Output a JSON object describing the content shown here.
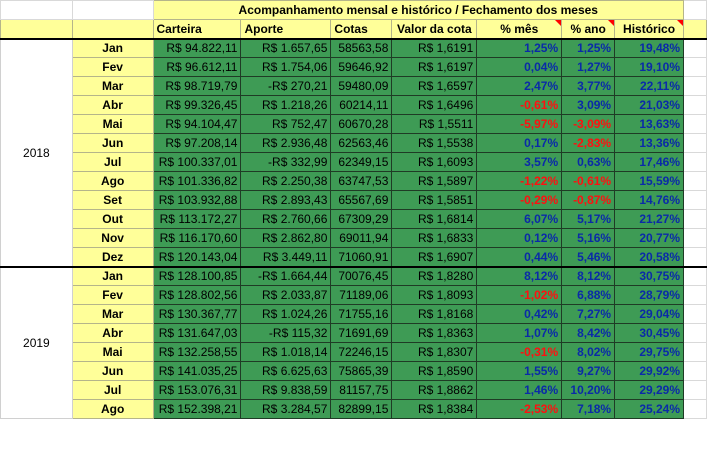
{
  "header": {
    "title": "Acompanhamento mensal e histórico / Fechamento dos meses",
    "columns": [
      "Carteira",
      "Aporte",
      "Cotas",
      "Valor da cota",
      "% mês",
      "% ano",
      "Histórico"
    ]
  },
  "years": [
    {
      "year": "2018",
      "rows": [
        {
          "month": "Jan",
          "carteira": "R$ 94.822,11",
          "aporte": "R$ 1.657,65",
          "cotas": "58563,58",
          "valor": "R$ 1,6191",
          "mes": "1,25%",
          "ano": "1,25%",
          "hist": "19,48%"
        },
        {
          "month": "Fev",
          "carteira": "R$ 96.612,11",
          "aporte": "R$ 1.754,06",
          "cotas": "59646,92",
          "valor": "R$ 1,6197",
          "mes": "0,04%",
          "ano": "1,27%",
          "hist": "19,10%"
        },
        {
          "month": "Mar",
          "carteira": "R$ 98.719,79",
          "aporte": "-R$ 270,21",
          "cotas": "59480,09",
          "valor": "R$ 1,6597",
          "mes": "2,47%",
          "ano": "3,77%",
          "hist": "22,11%"
        },
        {
          "month": "Abr",
          "carteira": "R$ 99.326,45",
          "aporte": "R$ 1.218,26",
          "cotas": "60214,11",
          "valor": "R$ 1,6496",
          "mes": "-0,61%",
          "ano": "3,09%",
          "hist": "21,03%"
        },
        {
          "month": "Mai",
          "carteira": "R$ 94.104,47",
          "aporte": "R$ 752,47",
          "cotas": "60670,28",
          "valor": "R$ 1,5511",
          "mes": "-5,97%",
          "ano": "-3,09%",
          "hist": "13,63%"
        },
        {
          "month": "Jun",
          "carteira": "R$ 97.208,14",
          "aporte": "R$ 2.936,48",
          "cotas": "62563,46",
          "valor": "R$ 1,5538",
          "mes": "0,17%",
          "ano": "-2,83%",
          "hist": "13,36%"
        },
        {
          "month": "Jul",
          "carteira": "R$ 100.337,01",
          "aporte": "-R$ 332,99",
          "cotas": "62349,15",
          "valor": "R$ 1,6093",
          "mes": "3,57%",
          "ano": "0,63%",
          "hist": "17,46%"
        },
        {
          "month": "Ago",
          "carteira": "R$ 101.336,82",
          "aporte": "R$ 2.250,38",
          "cotas": "63747,53",
          "valor": "R$ 1,5897",
          "mes": "-1,22%",
          "ano": "-0,61%",
          "hist": "15,59%"
        },
        {
          "month": "Set",
          "carteira": "R$ 103.932,88",
          "aporte": "R$ 2.893,43",
          "cotas": "65567,69",
          "valor": "R$ 1,5851",
          "mes": "-0,29%",
          "ano": "-0,87%",
          "hist": "14,76%"
        },
        {
          "month": "Out",
          "carteira": "R$ 113.172,27",
          "aporte": "R$ 2.760,66",
          "cotas": "67309,29",
          "valor": "R$ 1,6814",
          "mes": "6,07%",
          "ano": "5,17%",
          "hist": "21,27%"
        },
        {
          "month": "Nov",
          "carteira": "R$ 116.170,60",
          "aporte": "R$ 2.862,80",
          "cotas": "69011,94",
          "valor": "R$ 1,6833",
          "mes": "0,12%",
          "ano": "5,16%",
          "hist": "20,77%"
        },
        {
          "month": "Dez",
          "carteira": "R$ 120.143,04",
          "aporte": "R$ 3.449,11",
          "cotas": "71060,91",
          "valor": "R$ 1,6907",
          "mes": "0,44%",
          "ano": "5,46%",
          "hist": "20,58%"
        }
      ]
    },
    {
      "year": "2019",
      "rows": [
        {
          "month": "Jan",
          "carteira": "R$ 128.100,85",
          "aporte": "-R$ 1.664,44",
          "cotas": "70076,45",
          "valor": "R$ 1,8280",
          "mes": "8,12%",
          "ano": "8,12%",
          "hist": "30,75%"
        },
        {
          "month": "Fev",
          "carteira": "R$ 128.802,56",
          "aporte": "R$ 2.033,87",
          "cotas": "71189,06",
          "valor": "R$ 1,8093",
          "mes": "-1,02%",
          "ano": "6,88%",
          "hist": "28,79%"
        },
        {
          "month": "Mar",
          "carteira": "R$ 130.367,77",
          "aporte": "R$ 1.024,26",
          "cotas": "71755,16",
          "valor": "R$ 1,8168",
          "mes": "0,42%",
          "ano": "7,27%",
          "hist": "29,04%"
        },
        {
          "month": "Abr",
          "carteira": "R$ 131.647,03",
          "aporte": "-R$ 115,32",
          "cotas": "71691,69",
          "valor": "R$ 1,8363",
          "mes": "1,07%",
          "ano": "8,42%",
          "hist": "30,45%"
        },
        {
          "month": "Mai",
          "carteira": "R$ 132.258,55",
          "aporte": "R$ 1.018,14",
          "cotas": "72246,15",
          "valor": "R$ 1,8307",
          "mes": "-0,31%",
          "ano": "8,02%",
          "hist": "29,75%"
        },
        {
          "month": "Jun",
          "carteira": "R$ 141.035,25",
          "aporte": "R$ 6.625,63",
          "cotas": "75865,39",
          "valor": "R$ 1,8590",
          "mes": "1,55%",
          "ano": "9,27%",
          "hist": "29,92%"
        },
        {
          "month": "Jul",
          "carteira": "R$ 153.076,31",
          "aporte": "R$ 9.838,59",
          "cotas": "81157,75",
          "valor": "R$ 1,8862",
          "mes": "1,46%",
          "ano": "10,20%",
          "hist": "29,29%"
        },
        {
          "month": "Ago",
          "carteira": "R$ 152.398,21",
          "aporte": "R$ 3.284,57",
          "cotas": "82899,15",
          "valor": "R$ 1,8384",
          "mes": "-2,53%",
          "ano": "7,18%",
          "hist": "25,24%"
        }
      ]
    }
  ],
  "colors": {
    "cell_green": "#3e9b55",
    "header_yellow": "#ffff99",
    "positive_blue": "#0a2aa8",
    "negative_red": "#ff1010"
  }
}
